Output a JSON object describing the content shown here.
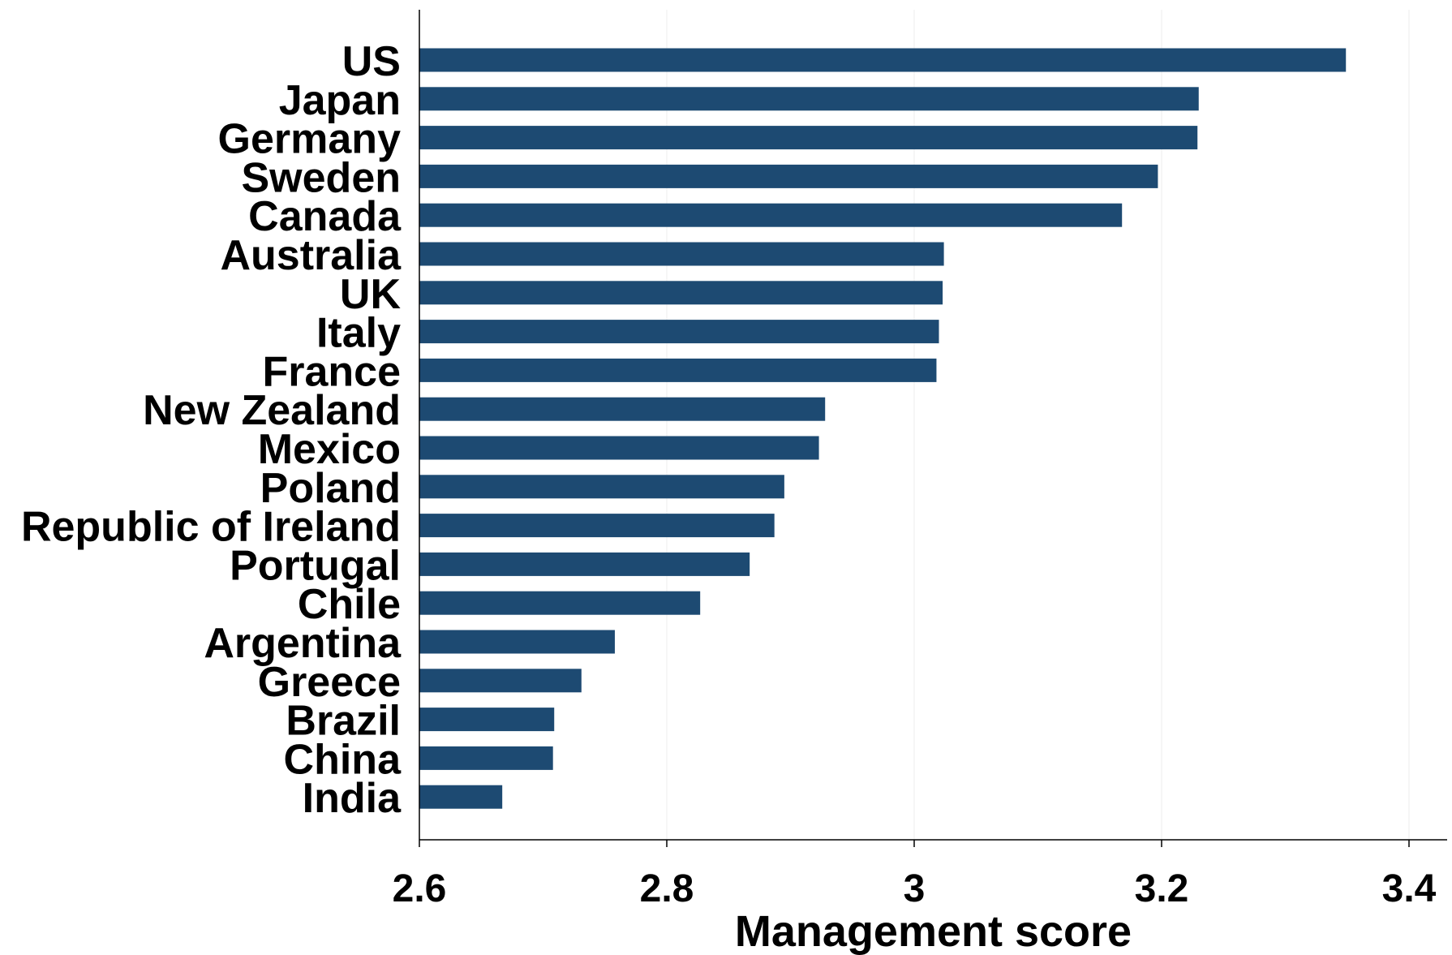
{
  "chart_data": {
    "type": "bar",
    "orientation": "horizontal",
    "categories": [
      "US",
      "Japan",
      "Germany",
      "Sweden",
      "Canada",
      "Australia",
      "UK",
      "Italy",
      "France",
      "New Zealand",
      "Mexico",
      "Poland",
      "Republic of Ireland",
      "Portugal",
      "Chile",
      "Argentina",
      "Greece",
      "Brazil",
      "China",
      "India"
    ],
    "values": [
      3.349,
      3.23,
      3.229,
      3.197,
      3.168,
      3.024,
      3.023,
      3.02,
      3.018,
      2.928,
      2.923,
      2.895,
      2.887,
      2.867,
      2.827,
      2.758,
      2.731,
      2.709,
      2.708,
      2.667
    ],
    "xlabel": "Management score",
    "ylabel": "",
    "xlim": [
      2.6,
      3.43
    ],
    "xticks": [
      "2.6",
      "2.8",
      "3",
      "3.2",
      "3.4"
    ],
    "grid": "vertical",
    "bar_color": "#1d4a72"
  }
}
